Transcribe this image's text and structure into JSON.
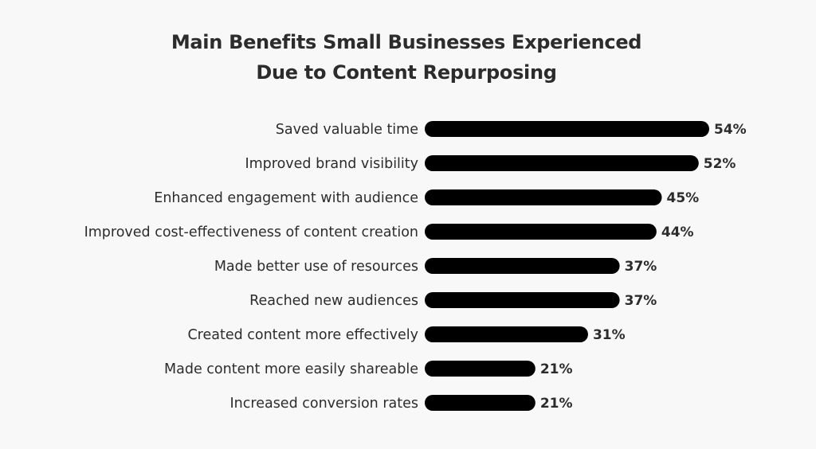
{
  "chart_data": {
    "type": "bar",
    "orientation": "horizontal",
    "title": "Main Benefits Small Businesses Experienced Due to Content Repurposing",
    "title_lines": [
      "Main Benefits Small Businesses Experienced",
      "Due to Content Repurposing"
    ],
    "categories": [
      "Saved valuable time",
      "Improved brand visibility",
      "Enhanced engagement with audience",
      "Improved cost-effectiveness of content creation",
      "Made better use of resources",
      "Reached new audiences",
      "Created content more effectively",
      "Made content more easily shareable",
      "Increased conversion rates"
    ],
    "values": [
      54,
      52,
      45,
      44,
      37,
      37,
      31,
      21,
      21
    ],
    "value_suffix": "%",
    "xlim": [
      0,
      54
    ],
    "grid": false,
    "legend": "none",
    "bar_color": "#000000",
    "background_color": "#f8f8f8"
  }
}
